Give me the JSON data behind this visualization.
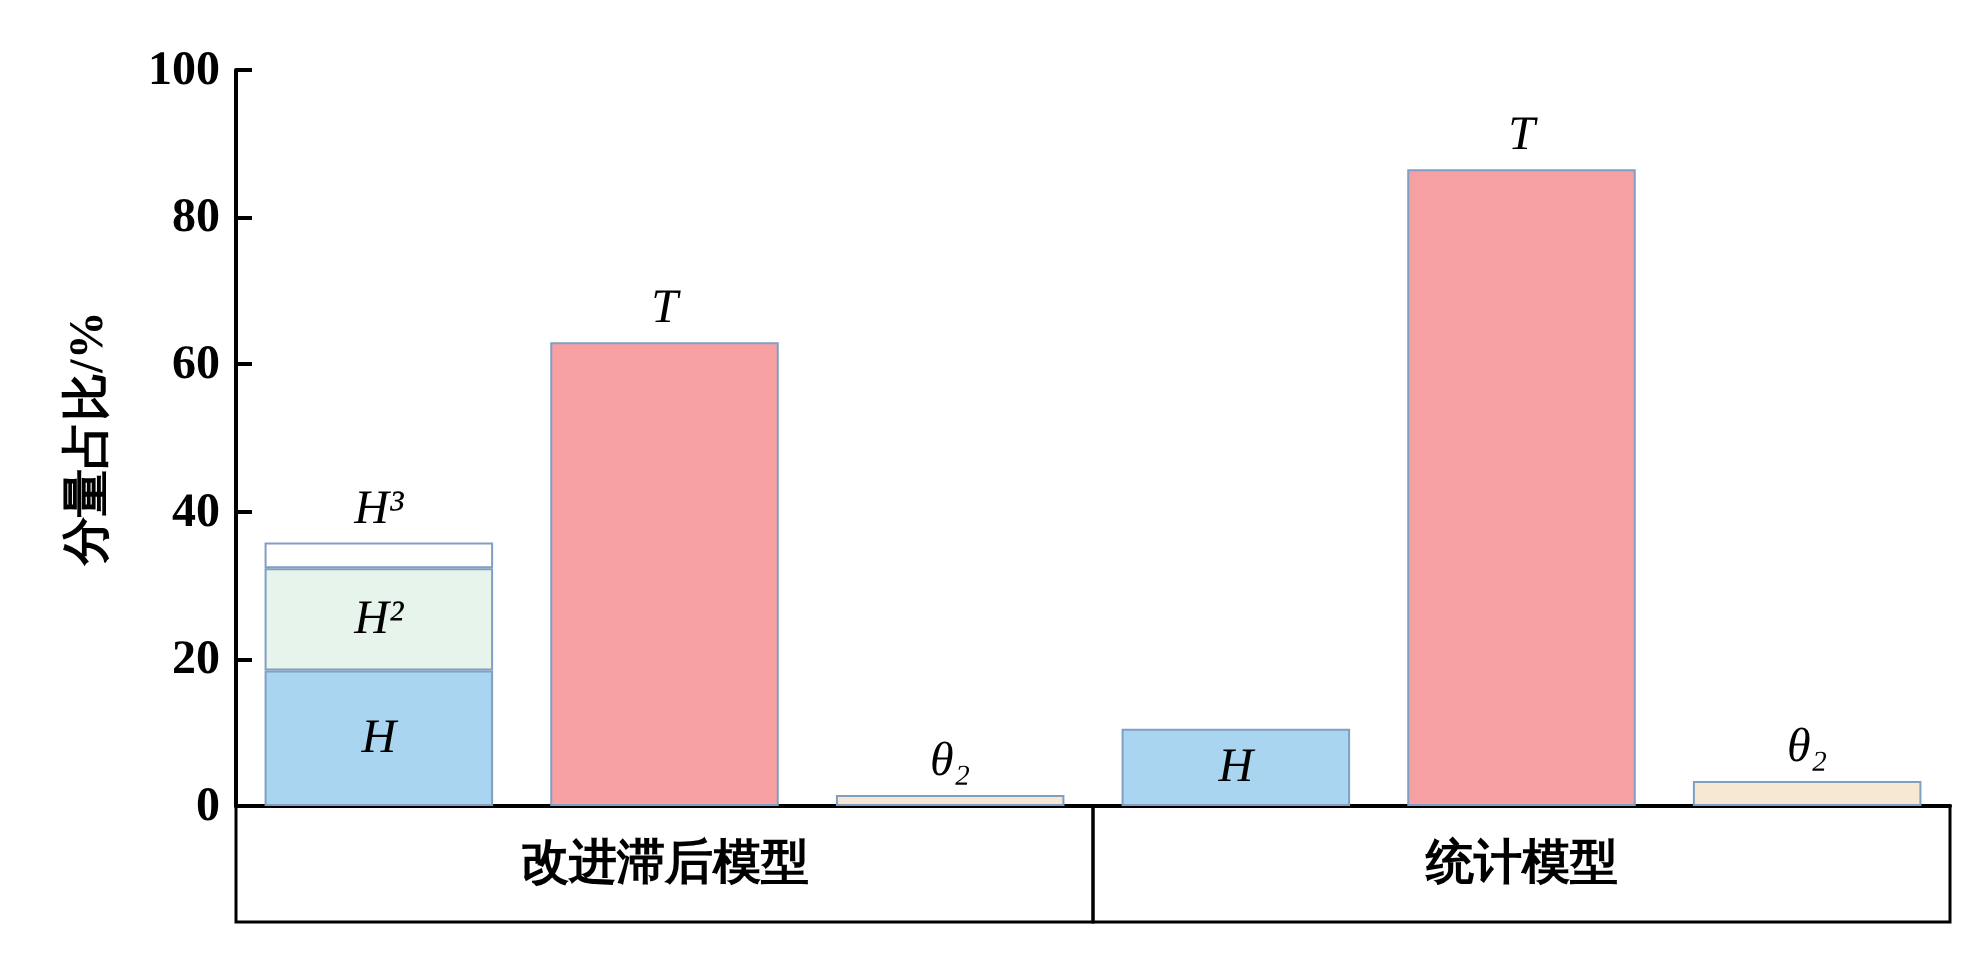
{
  "chart_data": {
    "type": "bar",
    "stacked": true,
    "ylabel": "分量占比/%",
    "categories": [
      null,
      null,
      null,
      null,
      null,
      null
    ],
    "series": [
      {
        "name": "H",
        "color": "#a9d5f0",
        "values": [
          18.4,
          null,
          null,
          10.5,
          null,
          null
        ]
      },
      {
        "name": "H²",
        "color": "#e6f4ec",
        "values": [
          13.9,
          null,
          null,
          null,
          null,
          null
        ]
      },
      {
        "name": "H³",
        "color": "#ffffff",
        "values": [
          3.5,
          null,
          null,
          null,
          null,
          null
        ]
      },
      {
        "name": "T",
        "color": "#f7a0a2",
        "values": [
          null,
          63,
          null,
          null,
          86.5,
          null
        ]
      },
      {
        "name": "θ₂",
        "color": "#f6e8d2",
        "values": [
          null,
          null,
          1.5,
          null,
          null,
          3.4
        ]
      }
    ],
    "annotations": [
      "改进滞后模型",
      "统计模型"
    ],
    "ylim": [
      0,
      100
    ],
    "yticks": [
      0,
      20,
      40,
      60,
      80,
      100
    ],
    "grid": false
  }
}
